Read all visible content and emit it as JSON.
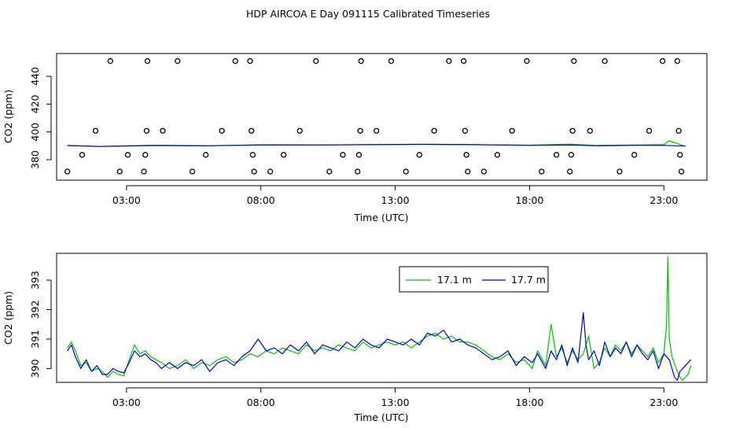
{
  "title": "HDP AIRCOA E  Day 091115  Calibrated Timeseries",
  "colors": {
    "green": "#00c000",
    "blue": "#0000cc",
    "axis": "#000000"
  },
  "chart_data": [
    {
      "id": "top",
      "type": "scatter",
      "xlabel": "Time (UTC)",
      "ylabel": "CO2 (ppm)",
      "xticks": [
        3,
        8,
        13,
        18,
        23
      ],
      "xtick_labels": [
        "03:00",
        "08:00",
        "13:00",
        "18:00",
        "23:00"
      ],
      "yticks": [
        380,
        400,
        420,
        440
      ],
      "yticks_labels": [
        "380",
        "400",
        "420",
        "440"
      ],
      "xlim": [
        0.4,
        24.6
      ],
      "ylim": [
        365.3,
        456.4
      ],
      "points": [
        [
          0.8,
          371.5
        ],
        [
          1.35,
          383.5
        ],
        [
          1.85,
          400.8
        ],
        [
          2.4,
          451
        ],
        [
          2.75,
          371.5
        ],
        [
          3.05,
          383.5
        ],
        [
          3.65,
          371.5
        ],
        [
          3.7,
          383.5
        ],
        [
          3.75,
          400.8
        ],
        [
          3.78,
          451
        ],
        [
          4.35,
          400.8
        ],
        [
          4.9,
          451
        ],
        [
          5.45,
          371.5
        ],
        [
          5.95,
          383.5
        ],
        [
          6.55,
          400.8
        ],
        [
          7.05,
          451
        ],
        [
          7.6,
          451
        ],
        [
          7.65,
          400.8
        ],
        [
          7.7,
          383.5
        ],
        [
          7.75,
          371.5
        ],
        [
          8.35,
          371.5
        ],
        [
          8.85,
          383.5
        ],
        [
          9.45,
          400.8
        ],
        [
          10.05,
          451
        ],
        [
          10.55,
          371.5
        ],
        [
          11.05,
          383.5
        ],
        [
          11.6,
          371.5
        ],
        [
          11.65,
          383.5
        ],
        [
          11.7,
          400.8
        ],
        [
          11.73,
          451
        ],
        [
          12.3,
          400.8
        ],
        [
          12.85,
          451
        ],
        [
          13.4,
          371.5
        ],
        [
          13.9,
          383.5
        ],
        [
          14.45,
          400.8
        ],
        [
          15.0,
          451
        ],
        [
          15.55,
          451
        ],
        [
          15.6,
          400.8
        ],
        [
          15.65,
          383.5
        ],
        [
          15.7,
          371.5
        ],
        [
          16.3,
          371.5
        ],
        [
          16.8,
          383.5
        ],
        [
          17.35,
          400.8
        ],
        [
          17.9,
          451
        ],
        [
          18.45,
          371.5
        ],
        [
          19.0,
          383.5
        ],
        [
          19.5,
          371.5
        ],
        [
          19.55,
          383.5
        ],
        [
          19.6,
          400.8
        ],
        [
          19.65,
          451
        ],
        [
          20.25,
          400.8
        ],
        [
          20.8,
          451
        ],
        [
          21.35,
          371.5
        ],
        [
          21.9,
          383.5
        ],
        [
          22.45,
          400.8
        ],
        [
          22.95,
          451
        ],
        [
          23.5,
          451
        ],
        [
          23.55,
          400.8
        ],
        [
          23.6,
          383.5
        ],
        [
          23.65,
          371.5
        ]
      ],
      "series": [
        {
          "color": "green",
          "x": [
            0.8,
            2,
            4,
            6,
            8,
            10,
            12,
            14,
            16,
            18,
            19.5,
            20.5,
            22,
            23,
            23.2,
            23.8
          ],
          "y": [
            390.3,
            389.6,
            390.4,
            390.1,
            390.5,
            390.6,
            390.9,
            391.0,
            390.8,
            390.5,
            391.2,
            390.3,
            390.6,
            390.8,
            393.6,
            389.6
          ]
        },
        {
          "color": "blue",
          "x": [
            0.8,
            2,
            4,
            6,
            8,
            10,
            12,
            14,
            16,
            18,
            19.5,
            20.5,
            22,
            23,
            23.8
          ],
          "y": [
            390.2,
            389.5,
            390.2,
            390.0,
            390.7,
            390.6,
            390.8,
            391.1,
            390.8,
            390.3,
            390.6,
            390.0,
            390.4,
            390.3,
            389.8
          ]
        }
      ]
    },
    {
      "id": "bottom",
      "type": "line",
      "xlabel": "Time (UTC)",
      "ylabel": "CO2 (ppm)",
      "xticks": [
        3,
        8,
        13,
        18,
        23
      ],
      "xtick_labels": [
        "03:00",
        "08:00",
        "13:00",
        "18:00",
        "23:00"
      ],
      "yticks": [
        390,
        391,
        392,
        393
      ],
      "yticks_labels": [
        "390",
        "391",
        "392",
        "393"
      ],
      "xlim": [
        0.4,
        24.6
      ],
      "ylim": [
        389.53,
        393.91
      ],
      "legend_position": "top-right",
      "series": [
        {
          "name": "17.1 m",
          "color": "green",
          "x": [
            0.8,
            0.95,
            1.1,
            1.3,
            1.5,
            1.7,
            1.9,
            2.1,
            2.3,
            2.5,
            2.7,
            2.9,
            3.1,
            3.3,
            3.5,
            3.7,
            3.9,
            4.1,
            4.3,
            4.6,
            4.9,
            5.2,
            5.5,
            5.8,
            6.1,
            6.4,
            6.7,
            7.0,
            7.3,
            7.6,
            7.9,
            8.2,
            8.5,
            8.8,
            9.1,
            9.4,
            9.7,
            10.0,
            10.3,
            10.6,
            10.9,
            11.2,
            11.5,
            11.8,
            12.1,
            12.4,
            12.7,
            13.0,
            13.3,
            13.6,
            13.9,
            14.2,
            14.5,
            14.8,
            15.1,
            15.4,
            15.7,
            16.0,
            16.3,
            16.6,
            16.9,
            17.2,
            17.5,
            17.8,
            18.1,
            18.3,
            18.6,
            18.8,
            19.0,
            19.2,
            19.4,
            19.6,
            19.8,
            20.0,
            20.2,
            20.4,
            20.6,
            20.8,
            21.0,
            21.2,
            21.4,
            21.6,
            21.8,
            22.0,
            22.2,
            22.4,
            22.6,
            22.8,
            23.0,
            23.1,
            23.15,
            23.2,
            23.3,
            23.5,
            23.6,
            23.7,
            23.9,
            24.0
          ],
          "y": [
            390.7,
            390.9,
            390.6,
            390.1,
            390.2,
            389.9,
            390.0,
            389.9,
            389.7,
            389.9,
            389.8,
            389.75,
            390.3,
            390.8,
            390.5,
            390.6,
            390.4,
            390.3,
            390.2,
            390.0,
            390.1,
            390.3,
            390.0,
            390.2,
            390.1,
            390.3,
            390.4,
            390.2,
            390.3,
            390.5,
            390.4,
            390.6,
            390.5,
            390.7,
            390.6,
            390.5,
            390.8,
            390.6,
            390.7,
            390.6,
            390.8,
            390.7,
            390.6,
            390.9,
            390.7,
            390.8,
            390.9,
            390.8,
            390.9,
            390.7,
            390.9,
            391.1,
            391.2,
            391.0,
            391.1,
            390.9,
            390.9,
            390.8,
            390.6,
            390.4,
            390.3,
            390.5,
            390.2,
            390.3,
            390.0,
            390.6,
            390.1,
            391.5,
            390.4,
            390.7,
            390.2,
            390.6,
            390.3,
            390.5,
            391.1,
            390.0,
            390.2,
            390.7,
            390.4,
            390.8,
            390.6,
            390.9,
            390.5,
            390.8,
            390.6,
            390.4,
            390.7,
            390.2,
            390.5,
            391.5,
            393.8,
            391.0,
            390.4,
            389.9,
            389.7,
            389.6,
            389.8,
            390.1
          ]
        },
        {
          "name": "17.7 m",
          "color": "blue",
          "x": [
            0.8,
            0.95,
            1.1,
            1.3,
            1.5,
            1.7,
            1.9,
            2.1,
            2.3,
            2.5,
            2.7,
            2.9,
            3.1,
            3.3,
            3.5,
            3.7,
            3.9,
            4.1,
            4.3,
            4.6,
            4.9,
            5.2,
            5.5,
            5.8,
            6.1,
            6.4,
            6.7,
            7.0,
            7.3,
            7.6,
            7.9,
            8.2,
            8.5,
            8.8,
            9.1,
            9.4,
            9.7,
            10.0,
            10.3,
            10.6,
            10.9,
            11.2,
            11.5,
            11.8,
            12.1,
            12.4,
            12.7,
            13.0,
            13.3,
            13.6,
            13.9,
            14.2,
            14.5,
            14.8,
            15.1,
            15.4,
            15.7,
            16.0,
            16.3,
            16.6,
            16.9,
            17.2,
            17.5,
            17.8,
            18.1,
            18.3,
            18.6,
            18.8,
            19.0,
            19.2,
            19.4,
            19.6,
            19.8,
            20.0,
            20.1,
            20.2,
            20.4,
            20.6,
            20.8,
            21.0,
            21.2,
            21.4,
            21.6,
            21.8,
            22.0,
            22.2,
            22.4,
            22.6,
            22.8,
            23.0,
            23.2,
            23.4,
            23.5,
            23.6,
            23.8,
            24.0
          ],
          "y": [
            390.6,
            390.8,
            390.4,
            390.0,
            390.3,
            389.9,
            390.1,
            389.8,
            389.8,
            390.0,
            389.9,
            389.85,
            390.2,
            390.6,
            390.4,
            390.5,
            390.3,
            390.2,
            390.0,
            390.2,
            390.0,
            390.2,
            390.1,
            390.3,
            389.9,
            390.2,
            390.3,
            390.1,
            390.4,
            390.6,
            391.0,
            390.6,
            390.7,
            390.5,
            390.8,
            390.6,
            390.9,
            390.5,
            390.8,
            390.7,
            390.6,
            390.9,
            390.7,
            391.0,
            390.8,
            390.7,
            391.0,
            390.9,
            390.8,
            391.0,
            390.8,
            391.2,
            391.1,
            391.3,
            390.9,
            391.0,
            390.8,
            390.7,
            390.5,
            390.3,
            390.4,
            390.6,
            390.1,
            390.4,
            390.2,
            390.5,
            390.0,
            390.6,
            390.3,
            390.8,
            390.1,
            390.7,
            390.2,
            391.9,
            390.8,
            390.3,
            390.6,
            390.1,
            390.9,
            390.4,
            390.7,
            390.5,
            390.9,
            390.4,
            390.8,
            390.5,
            390.3,
            390.6,
            390.0,
            390.5,
            390.3,
            389.7,
            389.6,
            389.9,
            390.1,
            390.3
          ]
        }
      ]
    }
  ]
}
